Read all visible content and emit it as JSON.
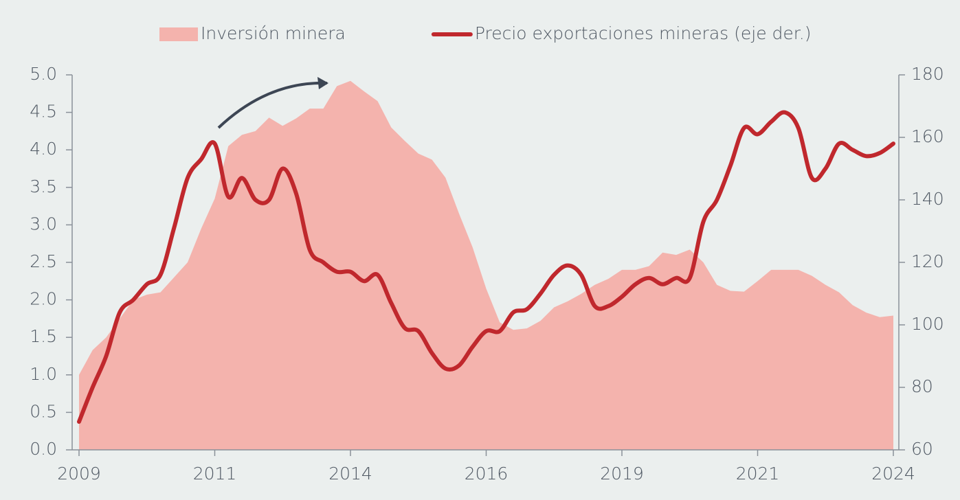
{
  "chart_data": {
    "type": "area-line",
    "categories": [
      "2009",
      null,
      null,
      null,
      null,
      null,
      null,
      null,
      null,
      null,
      "2011",
      null,
      null,
      null,
      null,
      null,
      null,
      null,
      null,
      null,
      "2014",
      null,
      null,
      null,
      null,
      null,
      null,
      null,
      null,
      null,
      "2016",
      null,
      null,
      null,
      null,
      null,
      null,
      null,
      null,
      null,
      "2019",
      null,
      null,
      null,
      null,
      null,
      null,
      null,
      null,
      null,
      "2021",
      null,
      null,
      null,
      null,
      null,
      null,
      null,
      null,
      null,
      "2024"
    ],
    "series": [
      {
        "name": "Inversión minera",
        "type": "area",
        "color": "#f4b3ad",
        "values": [
          1.0,
          1.33,
          1.5,
          1.75,
          2.0,
          2.07,
          2.1,
          2.3,
          2.5,
          2.95,
          3.35,
          4.05,
          4.2,
          4.25,
          4.43,
          4.32,
          4.42,
          4.55,
          4.55,
          4.85,
          4.92,
          4.78,
          4.65,
          4.3,
          4.12,
          3.95,
          3.87,
          3.63,
          3.15,
          2.7,
          2.15,
          1.7,
          1.6,
          1.62,
          1.72,
          1.9,
          1.98,
          2.08,
          2.2,
          2.28,
          2.4,
          2.4,
          2.45,
          2.63,
          2.6,
          2.67,
          2.5,
          2.2,
          2.12,
          2.11,
          2.25,
          2.4,
          2.4,
          2.4,
          2.32,
          2.2,
          2.1,
          1.93,
          1.83,
          1.77,
          1.79
        ]
      },
      {
        "name": "Precio exportaciones mineras (eje der.)",
        "type": "line",
        "axis": "y2",
        "color": "#c0282d",
        "values": [
          69,
          80,
          90,
          104,
          108,
          113,
          116,
          131,
          147,
          153,
          158,
          141,
          147,
          140,
          140,
          150,
          142,
          124,
          120,
          117,
          117,
          114,
          116,
          107,
          99,
          98,
          91,
          86,
          87,
          93,
          98,
          98,
          104,
          105,
          110,
          116,
          119,
          116,
          106,
          106,
          109,
          113,
          115,
          113,
          115,
          115,
          133,
          140,
          151,
          163,
          161,
          165,
          168,
          163,
          147,
          150,
          158,
          156,
          154,
          155,
          158
        ]
      }
    ],
    "ylim": [
      0,
      5
    ],
    "yticks": [
      {
        "value": 0,
        "label": "0.0"
      },
      0.5,
      {
        "value": 1,
        "label": "1.0"
      },
      1.5,
      {
        "value": 2,
        "label": "2.0"
      },
      2.5,
      {
        "value": 3,
        "label": "3.0"
      },
      3.5,
      {
        "value": 4,
        "label": "4.0"
      },
      4.5,
      {
        "value": 5,
        "label": "5.0"
      }
    ],
    "y2lim": [
      60,
      180
    ],
    "y2ticks": [
      60,
      80,
      100,
      120,
      140,
      160,
      180
    ],
    "legend": "top"
  }
}
